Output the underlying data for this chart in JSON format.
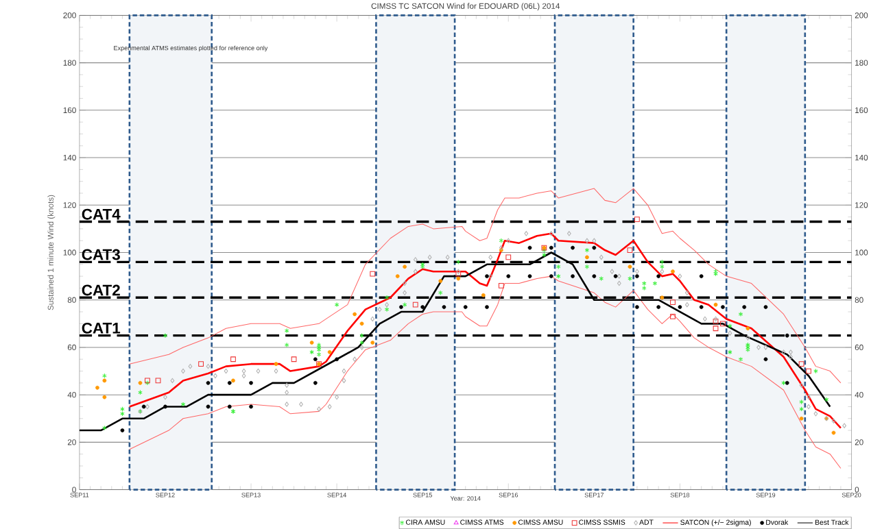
{
  "chart_data": {
    "type": "scatter",
    "title": "CIMSS TC SATCON Wind for EDOUARD (06L) 2014",
    "xlabel": "Year: 2014",
    "ylabel": "Sustained 1 minute Wind (knots)",
    "xlim": [
      "2014-09-11",
      "2014-09-20"
    ],
    "xticks": [
      {
        "value": "2014-09-11",
        "label": "SEP11"
      },
      {
        "value": "2014-09-12",
        "label": "SEP12"
      },
      {
        "value": "2014-09-13",
        "label": "SEP13"
      },
      {
        "value": "2014-09-14",
        "label": "SEP14"
      },
      {
        "value": "2014-09-15",
        "label": "SEP15"
      },
      {
        "value": "2014-09-16",
        "label": "SEP16"
      },
      {
        "value": "2014-09-17",
        "label": "SEP17"
      },
      {
        "value": "2014-09-18",
        "label": "SEP18"
      },
      {
        "value": "2014-09-19",
        "label": "SEP19"
      },
      {
        "value": "2014-09-20",
        "label": "SEP20"
      }
    ],
    "ylim": [
      0,
      200
    ],
    "yticks": [
      0,
      20,
      40,
      60,
      80,
      100,
      120,
      140,
      160,
      180,
      200
    ],
    "y2lim": [
      0,
      200
    ],
    "y2ticks": [
      0,
      20,
      40,
      60,
      80,
      100,
      120,
      140,
      160,
      180,
      200
    ],
    "grid": "y",
    "legend": "bottom",
    "annotations": [
      "Experimental ATMS estimates plotted for reference only"
    ],
    "ref_lines": [
      {
        "axis": "y",
        "value": 113,
        "label": "CAT4",
        "color": "#000000",
        "line_style": "dashed"
      },
      {
        "axis": "y",
        "value": 96,
        "label": "CAT3",
        "color": "#000000",
        "line_style": "dashed"
      },
      {
        "axis": "y",
        "value": 81,
        "label": "CAT2",
        "color": "#000000",
        "line_style": "dashed"
      },
      {
        "axis": "y",
        "value": 65,
        "label": "CAT1",
        "color": "#000000",
        "line_style": "dashed"
      }
    ],
    "bands": [
      {
        "axis": "x",
        "from": "2014-09-11T14:00",
        "to": "2014-09-12T13:00",
        "color": "#2e5a8c"
      },
      {
        "axis": "x",
        "from": "2014-09-14T11:00",
        "to": "2014-09-15T09:00",
        "color": "#2e5a8c"
      },
      {
        "axis": "x",
        "from": "2014-09-16T13:00",
        "to": "2014-09-17T11:00",
        "color": "#2e5a8c"
      },
      {
        "axis": "x",
        "from": "2014-09-18T13:00",
        "to": "2014-09-19T11:00",
        "color": "#2e5a8c"
      }
    ],
    "series": [
      {
        "name": "CIRA AMSU",
        "marker": "cross",
        "color": "#33ee33",
        "x": [
          "2014-09-11T07:00",
          "2014-09-11T12:00",
          "2014-09-11T12:00",
          "2014-09-11T07:00",
          "2014-09-11T17:00",
          "2014-09-11T17:00",
          "2014-09-11T19:00",
          "2014-09-12T05:00",
          "2014-09-12T00:00",
          "2014-09-12T19:00",
          "2014-09-12T19:00",
          "2014-09-13T10:00",
          "2014-09-13T10:00",
          "2014-09-13T17:00",
          "2014-09-13T19:00",
          "2014-09-13T19:00",
          "2014-09-13T19:00",
          "2014-09-13T19:00",
          "2014-09-14T00:00",
          "2014-09-14T07:00",
          "2014-09-14T07:00",
          "2014-09-14T14:00",
          "2014-09-14T14:00",
          "2014-09-14T19:00",
          "2014-09-15T00:00",
          "2014-09-15T00:00",
          "2014-09-15T05:00",
          "2014-09-15T10:00",
          "2014-09-15T22:00",
          "2014-09-16T10:00",
          "2014-09-16T10:00",
          "2014-09-16T14:00",
          "2014-09-16T14:00",
          "2014-09-16T22:00",
          "2014-09-16T22:00",
          "2014-09-17T02:00",
          "2014-09-17T10:00",
          "2014-09-17T14:00",
          "2014-09-17T14:00",
          "2014-09-17T17:00",
          "2014-09-17T19:00",
          "2014-09-17T19:00",
          "2014-09-18T10:00",
          "2014-09-18T10:00",
          "2014-09-18T14:00",
          "2014-09-18T14:00",
          "2014-09-18T17:00",
          "2014-09-18T17:00",
          "2014-09-18T19:00",
          "2014-09-18T19:00",
          "2014-09-18T19:00",
          "2014-09-18T19:00",
          "2014-09-19T05:00",
          "2014-09-19T10:00",
          "2014-09-19T10:00",
          "2014-09-19T14:00",
          "2014-09-19T17:00"
        ],
        "values": [
          48,
          34,
          32,
          26,
          41,
          33,
          45,
          36,
          65,
          33,
          33,
          67,
          61,
          58,
          57,
          59,
          61,
          60,
          78,
          65,
          62,
          76,
          81,
          78,
          95,
          94,
          83,
          96,
          105,
          101,
          99,
          94,
          90,
          101,
          94,
          89,
          89,
          87,
          85,
          87,
          96,
          94,
          92,
          91,
          69,
          58,
          74,
          55,
          61,
          59,
          61,
          60,
          45,
          37,
          34,
          50,
          38
        ]
      },
      {
        "name": "CIMSS ATMS",
        "marker": "triangle",
        "color": "#ee33ee"
      },
      {
        "name": "CIMSS AMSU",
        "marker": "circle",
        "color": "#ff9900",
        "x": [
          "2014-09-11T05:00",
          "2014-09-11T07:00",
          "2014-09-11T07:00",
          "2014-09-11T17:00",
          "2014-09-12T19:00",
          "2014-09-13T07:00",
          "2014-09-13T17:00",
          "2014-09-13T19:00",
          "2014-09-13T22:00",
          "2014-09-14T05:00",
          "2014-09-14T07:00",
          "2014-09-14T10:00",
          "2014-09-14T17:00",
          "2014-09-14T19:00",
          "2014-09-15T05:00",
          "2014-09-15T10:00",
          "2014-09-15T17:00",
          "2014-09-15T22:00",
          "2014-09-16T10:00",
          "2014-09-16T22:00",
          "2014-09-17T10:00",
          "2014-09-17T22:00",
          "2014-09-17T19:00",
          "2014-09-18T10:00",
          "2014-09-18T19:00",
          "2014-09-19T10:00",
          "2014-09-19T17:00",
          "2014-09-19T19:00"
        ],
        "values": [
          43,
          39,
          46,
          45,
          46,
          53,
          62,
          53,
          58,
          74,
          70,
          62,
          90,
          94,
          88,
          89,
          82,
          101,
          102,
          98,
          94,
          92,
          81,
          78,
          68,
          30,
          30,
          24
        ]
      },
      {
        "name": "CIMSS SSMIS",
        "marker": "square",
        "color": "#ee3333",
        "x": [
          "2014-09-11T19:00",
          "2014-09-11T22:00",
          "2014-09-12T10:00",
          "2014-09-12T19:00",
          "2014-09-13T12:00",
          "2014-09-13T19:00",
          "2014-09-14T10:00",
          "2014-09-14T22:00",
          "2014-09-15T10:00",
          "2014-09-15T22:00",
          "2014-09-16T00:00",
          "2014-09-16T10:00",
          "2014-09-17T10:00",
          "2014-09-17T12:00",
          "2014-09-17T22:00",
          "2014-09-17T22:00",
          "2014-09-18T10:00",
          "2014-09-18T12:00",
          "2014-09-18T10:00",
          "2014-09-19T10:00",
          "2014-09-19T12:00"
        ],
        "values": [
          46,
          46,
          53,
          55,
          55,
          53,
          91,
          78,
          91,
          86,
          98,
          102,
          101,
          114,
          79,
          73,
          71,
          70,
          68,
          53,
          50
        ]
      },
      {
        "name": "ADT",
        "marker": "diamond",
        "color": "#b0b0b0",
        "x": [
          "2014-09-11T17:00",
          "2014-09-11T19:00",
          "2014-09-12T00:00",
          "2014-09-12T02:00",
          "2014-09-12T05:00",
          "2014-09-12T07:00",
          "2014-09-12T12:00",
          "2014-09-12T14:00",
          "2014-09-12T17:00",
          "2014-09-12T22:00",
          "2014-09-12T22:00",
          "2014-09-13T02:00",
          "2014-09-13T07:00",
          "2014-09-13T10:00",
          "2014-09-13T10:00",
          "2014-09-13T10:00",
          "2014-09-13T14:00",
          "2014-09-13T19:00",
          "2014-09-13T22:00",
          "2014-09-14T00:00",
          "2014-09-14T02:00",
          "2014-09-14T02:00",
          "2014-09-14T05:00",
          "2014-09-14T07:00",
          "2014-09-14T10:00",
          "2014-09-14T12:00",
          "2014-09-14T14:00",
          "2014-09-14T19:00",
          "2014-09-14T19:00",
          "2014-09-14T22:00",
          "2014-09-14T22:00",
          "2014-09-15T02:00",
          "2014-09-15T07:00",
          "2014-09-15T10:00",
          "2014-09-15T19:00",
          "2014-09-15T19:00",
          "2014-09-15T22:00",
          "2014-09-16T00:00",
          "2014-09-16T05:00",
          "2014-09-16T12:00",
          "2014-09-16T17:00",
          "2014-09-16T22:00",
          "2014-09-17T00:00",
          "2014-09-17T02:00",
          "2014-09-17T05:00",
          "2014-09-17T07:00",
          "2014-09-17T07:00",
          "2014-09-17T12:00",
          "2014-09-17T19:00",
          "2014-09-18T00:00",
          "2014-09-18T02:00",
          "2014-09-18T02:00",
          "2014-09-18T07:00",
          "2014-09-18T10:00",
          "2014-09-18T14:00",
          "2014-09-18T19:00",
          "2014-09-18T22:00",
          "2014-09-19T00:00",
          "2014-09-19T05:00",
          "2014-09-19T07:00",
          "2014-09-19T07:00",
          "2014-09-19T10:00",
          "2014-09-19T12:00",
          "2014-09-19T12:00",
          "2014-09-19T14:00",
          "2014-09-19T17:00",
          "2014-09-19T19:00",
          "2014-09-19T22:00"
        ],
        "values": [
          33,
          35,
          39,
          46,
          50,
          52,
          52,
          48,
          50,
          50,
          48,
          50,
          50,
          44,
          41,
          36,
          36,
          34,
          35,
          39,
          46,
          50,
          55,
          60,
          72,
          76,
          78,
          83,
          87,
          92,
          97,
          98,
          98,
          92,
          90,
          98,
          102,
          105,
          108,
          108,
          108,
          105,
          105,
          98,
          92,
          90,
          87,
          92,
          92,
          90,
          83,
          78,
          72,
          72,
          66,
          64,
          60,
          60,
          58,
          58,
          56,
          44,
          39,
          35,
          32,
          30,
          29,
          27
        ]
      },
      {
        "name": "SATCON (+/− 2sigma)",
        "type": "line",
        "marker": "none",
        "color": "#ff0000",
        "x": [
          "2014-09-11T14:00",
          "2014-09-12T01:00",
          "2014-09-12T05:00",
          "2014-09-12T12:00",
          "2014-09-12T17:00",
          "2014-09-13T00:00",
          "2014-09-13T08:00",
          "2014-09-13T11:00",
          "2014-09-13T19:00",
          "2014-09-13T21:00",
          "2014-09-14T03:00",
          "2014-09-14T08:00",
          "2014-09-14T15:00",
          "2014-09-14T20:00",
          "2014-09-15T00:00",
          "2014-09-15T03:00",
          "2014-09-15T11:00",
          "2014-09-15T12:00",
          "2014-09-15T16:00",
          "2014-09-15T18:00",
          "2014-09-15T21:00",
          "2014-09-15T23:00",
          "2014-09-16T03:00",
          "2014-09-16T08:00",
          "2014-09-16T12:00",
          "2014-09-16T14:00",
          "2014-09-17T00:00",
          "2014-09-17T03:00",
          "2014-09-17T06:00",
          "2014-09-17T11:00",
          "2014-09-17T15:00",
          "2014-09-17T19:00",
          "2014-09-17T22:00",
          "2014-09-18T00:00",
          "2014-09-18T04:00",
          "2014-09-18T08:00",
          "2014-09-18T13:00",
          "2014-09-18T20:00",
          "2014-09-19T05:00",
          "2014-09-19T11:00",
          "2014-09-19T14:00",
          "2014-09-19T18:00",
          "2014-09-19T21:00"
        ],
        "values": [
          35,
          41,
          46,
          49,
          52,
          53,
          53,
          50,
          52,
          54,
          67,
          76,
          81,
          89,
          93,
          92,
          92,
          92,
          87,
          86,
          97,
          105,
          104,
          107,
          108,
          105,
          104,
          101,
          99,
          105,
          96,
          90,
          91,
          88,
          80,
          78,
          72,
          68,
          56,
          42,
          34,
          31,
          26
        ]
      },
      {
        "type": "line",
        "marker": "none",
        "color": "#ff6666",
        "x": [
          "2014-09-11T14:00",
          "2014-09-12T01:00",
          "2014-09-12T05:00",
          "2014-09-12T12:00",
          "2014-09-12T17:00",
          "2014-09-13T00:00",
          "2014-09-13T08:00",
          "2014-09-13T11:00",
          "2014-09-13T19:00",
          "2014-09-13T21:00",
          "2014-09-14T03:00",
          "2014-09-14T08:00",
          "2014-09-14T15:00",
          "2014-09-14T20:00",
          "2014-09-15T00:00",
          "2014-09-15T03:00",
          "2014-09-15T11:00",
          "2014-09-15T12:00",
          "2014-09-15T16:00",
          "2014-09-15T18:00",
          "2014-09-15T21:00",
          "2014-09-15T23:00",
          "2014-09-16T03:00",
          "2014-09-16T08:00",
          "2014-09-16T12:00",
          "2014-09-16T14:00",
          "2014-09-17T00:00",
          "2014-09-17T03:00",
          "2014-09-17T06:00",
          "2014-09-17T11:00",
          "2014-09-17T15:00",
          "2014-09-17T19:00",
          "2014-09-17T22:00",
          "2014-09-18T00:00",
          "2014-09-18T04:00",
          "2014-09-18T08:00",
          "2014-09-18T13:00",
          "2014-09-18T20:00",
          "2014-09-19T05:00",
          "2014-09-19T11:00",
          "2014-09-19T14:00",
          "2014-09-19T18:00",
          "2014-09-19T21:00"
        ],
        "values": [
          53,
          57,
          60,
          64,
          68,
          70,
          70,
          68,
          70,
          72,
          78,
          95,
          106,
          111,
          112,
          110,
          111,
          109,
          105,
          106,
          118,
          123,
          123,
          125,
          126,
          123,
          127,
          122,
          121,
          127,
          120,
          108,
          109,
          106,
          101,
          95,
          90,
          87,
          74,
          60,
          52,
          50,
          45
        ]
      },
      {
        "type": "line",
        "marker": "none",
        "color": "#ff6666",
        "x": [
          "2014-09-11T14:00",
          "2014-09-12T01:00",
          "2014-09-12T05:00",
          "2014-09-12T12:00",
          "2014-09-12T17:00",
          "2014-09-13T00:00",
          "2014-09-13T08:00",
          "2014-09-13T11:00",
          "2014-09-13T19:00",
          "2014-09-13T21:00",
          "2014-09-14T03:00",
          "2014-09-14T08:00",
          "2014-09-14T15:00",
          "2014-09-14T20:00",
          "2014-09-15T00:00",
          "2014-09-15T03:00",
          "2014-09-15T11:00",
          "2014-09-15T12:00",
          "2014-09-15T16:00",
          "2014-09-15T18:00",
          "2014-09-15T21:00",
          "2014-09-15T23:00",
          "2014-09-16T03:00",
          "2014-09-16T08:00",
          "2014-09-16T12:00",
          "2014-09-16T14:00",
          "2014-09-17T00:00",
          "2014-09-17T03:00",
          "2014-09-17T06:00",
          "2014-09-17T11:00",
          "2014-09-17T15:00",
          "2014-09-17T19:00",
          "2014-09-17T22:00",
          "2014-09-18T00:00",
          "2014-09-18T04:00",
          "2014-09-18T08:00",
          "2014-09-18T13:00",
          "2014-09-18T20:00",
          "2014-09-19T05:00",
          "2014-09-19T11:00",
          "2014-09-19T14:00",
          "2014-09-19T18:00",
          "2014-09-19T21:00"
        ],
        "values": [
          17,
          25,
          30,
          32,
          35,
          36,
          35,
          32,
          33,
          36,
          50,
          59,
          63,
          70,
          74,
          75,
          75,
          73,
          69,
          69,
          78,
          87,
          87,
          89,
          90,
          88,
          83,
          79,
          77,
          84,
          76,
          70,
          74,
          71,
          64,
          60,
          56,
          52,
          42,
          25,
          18,
          15,
          9
        ]
      },
      {
        "name": "Dvorak",
        "marker": "circle",
        "color": "#000000",
        "x": [
          "2014-09-11T12:00",
          "2014-09-11T18:00",
          "2014-09-12T00:00",
          "2014-09-12T12:00",
          "2014-09-12T12:00",
          "2014-09-12T18:00",
          "2014-09-12T18:00",
          "2014-09-13T00:00",
          "2014-09-13T00:00",
          "2014-09-13T18:00",
          "2014-09-13T18:00",
          "2014-09-14T00:00",
          "2014-09-14T18:00",
          "2014-09-15T00:00",
          "2014-09-15T06:00",
          "2014-09-15T12:00",
          "2014-09-15T18:00",
          "2014-09-15T18:00",
          "2014-09-16T00:00",
          "2014-09-16T06:00",
          "2014-09-16T06:00",
          "2014-09-16T12:00",
          "2014-09-16T12:00",
          "2014-09-16T18:00",
          "2014-09-16T18:00",
          "2014-09-17T00:00",
          "2014-09-17T00:00",
          "2014-09-17T06:00",
          "2014-09-17T12:00",
          "2014-09-17T12:00",
          "2014-09-17T18:00",
          "2014-09-17T18:00",
          "2014-09-18T00:00",
          "2014-09-18T06:00",
          "2014-09-18T06:00",
          "2014-09-18T12:00",
          "2014-09-18T18:00",
          "2014-09-19T00:00",
          "2014-09-19T00:00",
          "2014-09-19T06:00",
          "2014-09-19T06:00"
        ],
        "values": [
          25,
          35,
          35,
          45,
          35,
          45,
          35,
          45,
          35,
          55,
          45,
          55,
          77,
          77,
          77,
          77,
          77,
          90,
          90,
          102,
          90,
          102,
          90,
          102,
          90,
          102,
          90,
          90,
          90,
          77,
          90,
          77,
          77,
          90,
          77,
          77,
          77,
          77,
          55,
          65,
          45
        ]
      },
      {
        "name": "Best Track",
        "type": "line",
        "marker": "none",
        "color": "#000000",
        "x": [
          "2014-09-11T00:00",
          "2014-09-11T06:00",
          "2014-09-11T12:00",
          "2014-09-11T18:00",
          "2014-09-12T00:00",
          "2014-09-12T06:00",
          "2014-09-12T12:00",
          "2014-09-13T00:00",
          "2014-09-13T06:00",
          "2014-09-13T12:00",
          "2014-09-13T18:00",
          "2014-09-14T00:00",
          "2014-09-14T06:00",
          "2014-09-14T12:00",
          "2014-09-14T18:00",
          "2014-09-15T00:00",
          "2014-09-15T06:00",
          "2014-09-15T12:00",
          "2014-09-15T18:00",
          "2014-09-16T06:00",
          "2014-09-16T12:00",
          "2014-09-16T18:00",
          "2014-09-17T00:00",
          "2014-09-17T18:00",
          "2014-09-18T06:00",
          "2014-09-18T12:00",
          "2014-09-18T18:00",
          "2014-09-19T06:00",
          "2014-09-19T12:00",
          "2014-09-19T18:00"
        ],
        "values": [
          25,
          25,
          30,
          30,
          35,
          35,
          40,
          40,
          45,
          45,
          50,
          55,
          60,
          70,
          75,
          75,
          90,
          90,
          95,
          95,
          100,
          95,
          80,
          80,
          70,
          70,
          65,
          57,
          48,
          35
        ]
      }
    ]
  }
}
